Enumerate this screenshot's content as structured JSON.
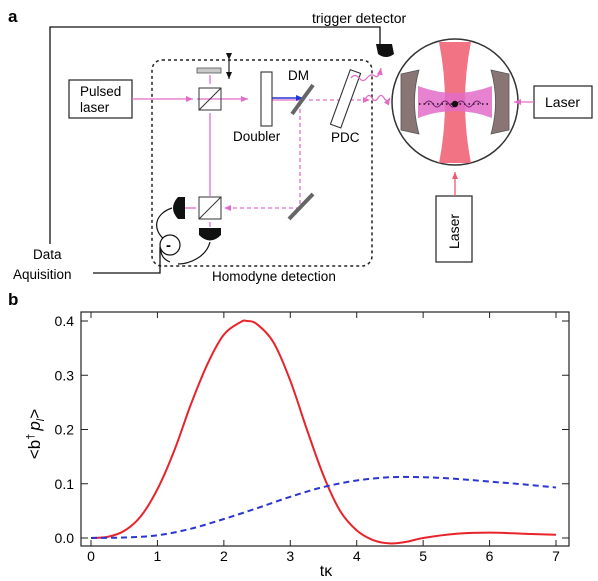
{
  "panel_a": {
    "label": "a",
    "trigger_detector": "trigger detector",
    "pulsed_laser_line1": "Pulsed",
    "pulsed_laser_line2": "laser",
    "dm": "DM",
    "doubler": "Doubler",
    "pdc": "PDC",
    "laser_right": "Laser",
    "laser_bottom": "Laser",
    "data_line1": "Data",
    "data_line2": "Aquisition",
    "homodyne": "Homodyne detection",
    "minus_sign": "-"
  },
  "panel_b": {
    "label": "b",
    "xlabel": "tκ",
    "ylabel": "<b† p_l>",
    "ylabel_main": "<b",
    "ylabel_dagger": "†",
    "ylabel_p": "p",
    "ylabel_sub": "l",
    "ylabel_close": ">",
    "x_ticks": [
      "0",
      "1",
      "2",
      "3",
      "4",
      "5",
      "6",
      "7"
    ],
    "y_ticks": [
      "0.0",
      "0.1",
      "0.2",
      "0.3",
      "0.4"
    ]
  },
  "colors": {
    "pink_beam": "#e26cc8",
    "red_beam": "#ee5a6e",
    "blue": "#2436d8",
    "red_curve": "#e8232a",
    "blue_curve": "#2a35d2",
    "mirror_fill": "#8a7575"
  },
  "chart_data": {
    "type": "line",
    "xlabel": "tκ",
    "ylabel": "<b† p_l>",
    "xlim": [
      0,
      7
    ],
    "ylim": [
      0,
      0.4
    ],
    "grid": false,
    "series": [
      {
        "style": "solid red",
        "x": [
          0,
          0.25,
          0.5,
          0.75,
          1,
          1.25,
          1.5,
          1.75,
          2,
          2.25,
          2.35,
          2.5,
          2.75,
          3,
          3.25,
          3.5,
          3.75,
          4,
          4.25,
          4.5,
          4.75,
          5,
          5.5,
          6,
          6.5,
          7
        ],
        "y": [
          0,
          0.002,
          0.013,
          0.04,
          0.09,
          0.16,
          0.245,
          0.32,
          0.375,
          0.398,
          0.4,
          0.394,
          0.36,
          0.29,
          0.2,
          0.115,
          0.05,
          0.014,
          -0.004,
          -0.01,
          -0.007,
          0.0,
          0.008,
          0.01,
          0.008,
          0.006
        ]
      },
      {
        "style": "dashed blue",
        "x": [
          0,
          0.5,
          1,
          1.5,
          2,
          2.5,
          3,
          3.5,
          4,
          4.5,
          5,
          5.5,
          6,
          6.5,
          7
        ],
        "y": [
          0,
          0.001,
          0.005,
          0.017,
          0.035,
          0.055,
          0.076,
          0.094,
          0.106,
          0.112,
          0.112,
          0.109,
          0.104,
          0.099,
          0.093
        ]
      }
    ]
  }
}
